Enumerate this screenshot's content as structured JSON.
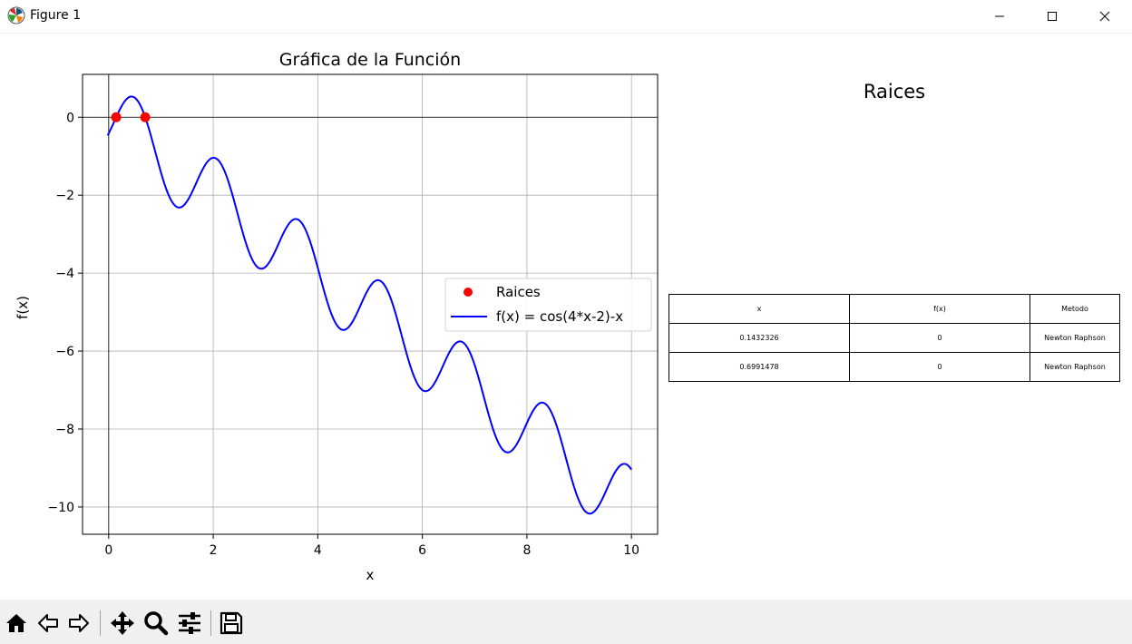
{
  "window": {
    "title": "Figure 1",
    "icon": "matplotlib-icon",
    "controls": [
      "minimize-icon",
      "maximize-icon",
      "close-icon"
    ]
  },
  "chart_data": {
    "type": "line",
    "title": "Gráfica de la Función",
    "xlabel": "x",
    "ylabel": "f(x)",
    "xlim": [
      -0.5,
      10.5
    ],
    "ylim": [
      -10.7,
      1.1
    ],
    "xticks": [
      0,
      2,
      4,
      6,
      8,
      10
    ],
    "yticks": [
      0,
      -2,
      -4,
      -6,
      -8,
      -10
    ],
    "xtick_labels": [
      "0",
      "2",
      "4",
      "6",
      "8",
      "10"
    ],
    "ytick_labels": [
      "0",
      "−2",
      "−4",
      "−6",
      "−8",
      "−10"
    ],
    "grid": true,
    "legend_position": "center-right",
    "hline": 0,
    "vline": 0,
    "series": [
      {
        "name": "f(x) = cos(4*x-2)-x",
        "kind": "line",
        "color": "#0000ff",
        "function": "cos(4*x-2)-x",
        "x_range": [
          -0.02,
          10
        ]
      },
      {
        "name": "Raices",
        "kind": "scatter",
        "color": "#ff0000",
        "x": [
          0.1432326,
          0.6991478
        ],
        "y": [
          0,
          0
        ]
      }
    ]
  },
  "table": {
    "title": "Raices",
    "headers": [
      "x",
      "f(x)",
      "Metodo"
    ],
    "rows": [
      [
        "0.1432326",
        "0",
        "Newton Raphson"
      ],
      [
        "0.6991478",
        "0",
        "Newton Raphson"
      ]
    ]
  },
  "toolbar": {
    "buttons": [
      "home-icon",
      "back-icon",
      "forward-icon",
      "pan-icon",
      "zoom-icon",
      "configure-icon",
      "save-icon"
    ]
  }
}
